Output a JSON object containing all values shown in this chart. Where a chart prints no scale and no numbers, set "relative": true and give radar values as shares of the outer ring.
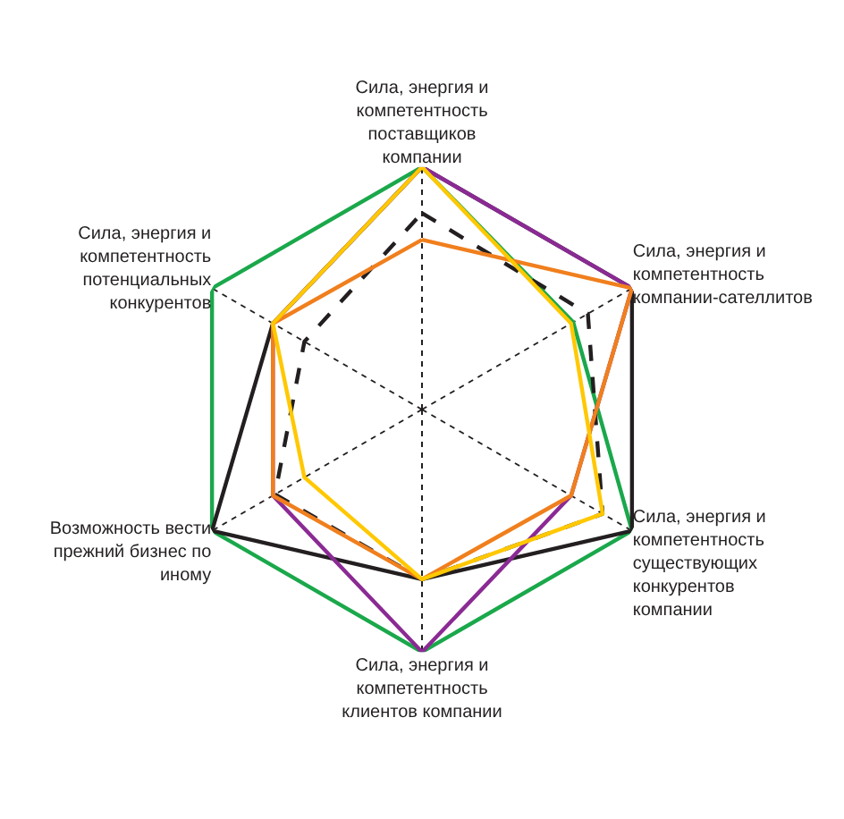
{
  "chart_data": {
    "type": "radar",
    "relative": true,
    "marker": "none",
    "categories": [
      "Сила, энергия и компетентность поставщиков компании",
      "Сила, энергия и компетентность компании-сателлитов",
      "Сила, энергия и компетентность существующих конкурентов компании",
      "Сила, энергия и компетентность клиентов компании",
      "Возможность вести прежний бизнес по иному",
      "Сила, энергия и компетентность потенциальных конкурентов"
    ],
    "series": [
      {
        "color": "#1aa84b",
        "values": [
          1,
          0.72,
          1,
          1,
          1,
          1
        ]
      },
      {
        "color": "#231f20",
        "values": [
          1,
          1,
          1,
          0.7,
          1,
          0.71
        ]
      },
      {
        "color": "#8b2a94",
        "values": [
          1,
          1,
          0.71,
          1,
          0.71,
          0.71
        ]
      },
      {
        "color": "#231f20",
        "line_style": "dashed",
        "values": [
          0.81,
          0.79,
          0.86,
          0.7,
          0.7,
          0.56
        ]
      },
      {
        "color": "#f07f1d",
        "values": [
          0.7,
          1,
          0.71,
          0.7,
          0.71,
          0.71
        ]
      },
      {
        "color": "#ffc800",
        "values": [
          1,
          0.71,
          0.86,
          0.7,
          0.56,
          0.71
        ]
      }
    ]
  }
}
